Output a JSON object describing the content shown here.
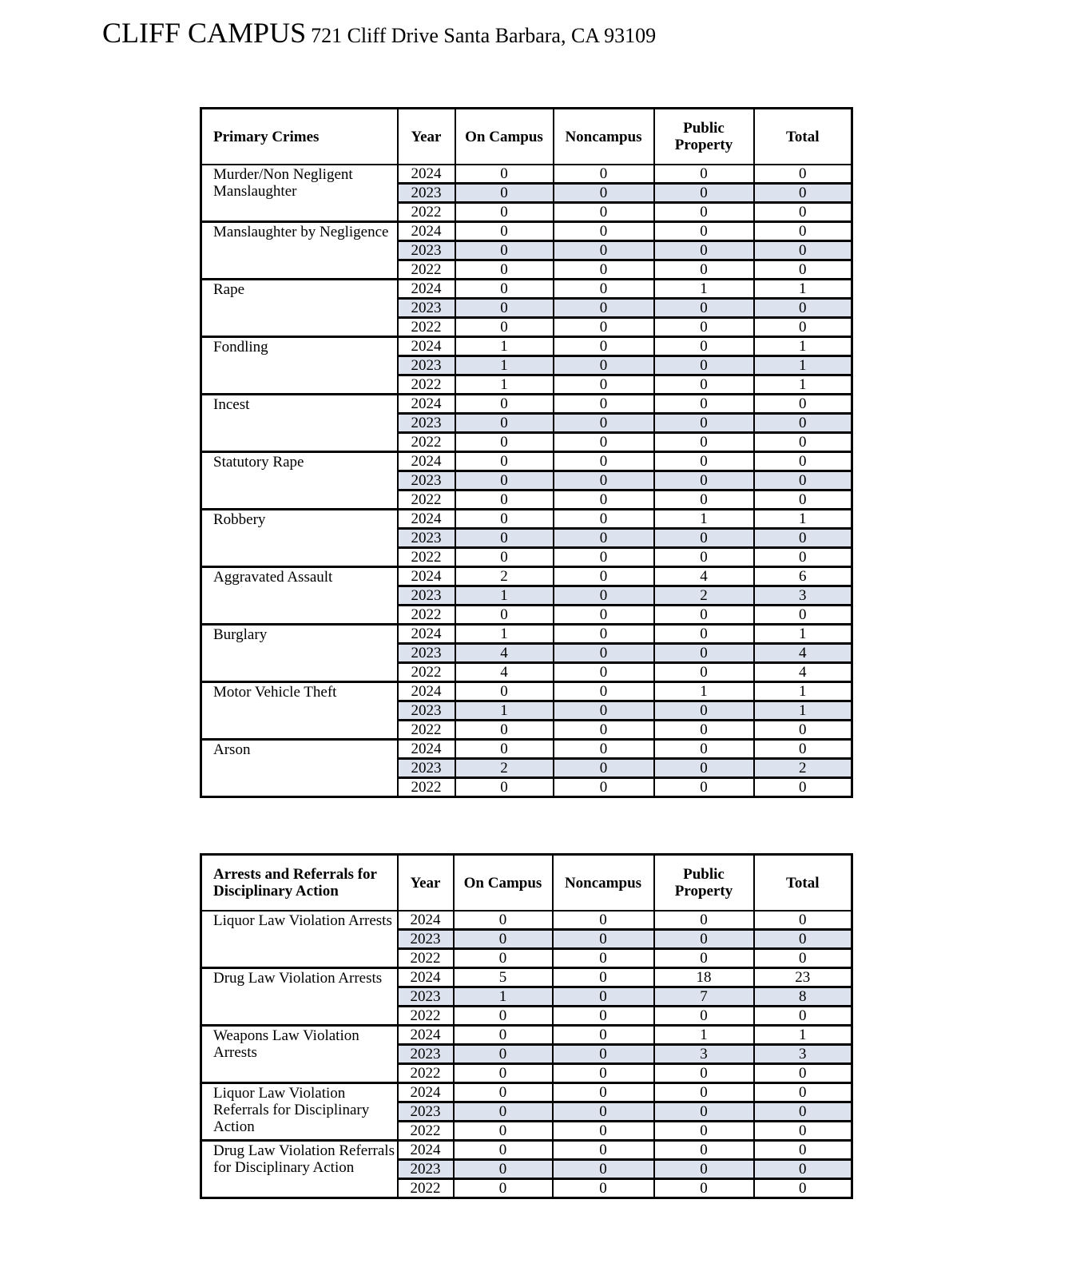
{
  "title": {
    "campus": "CLIFF CAMPUS",
    "address": "721 Cliff Drive Santa Barbara, CA 93109"
  },
  "tables": [
    {
      "headers": [
        "Primary Crimes",
        "Year",
        "On Campus",
        "Noncampus",
        "Public Property",
        "Total"
      ],
      "groups": [
        {
          "name": "Murder/Non Negligent Manslaughter",
          "rows": [
            [
              "2024",
              "0",
              "0",
              "0",
              "0"
            ],
            [
              "2023",
              "0",
              "0",
              "0",
              "0"
            ],
            [
              "2022",
              "0",
              "0",
              "0",
              "0"
            ]
          ]
        },
        {
          "name": "Manslaughter by Negligence",
          "rows": [
            [
              "2024",
              "0",
              "0",
              "0",
              "0"
            ],
            [
              "2023",
              "0",
              "0",
              "0",
              "0"
            ],
            [
              "2022",
              "0",
              "0",
              "0",
              "0"
            ]
          ]
        },
        {
          "name": "Rape",
          "rows": [
            [
              "2024",
              "0",
              "0",
              "1",
              "1"
            ],
            [
              "2023",
              "0",
              "0",
              "0",
              "0"
            ],
            [
              "2022",
              "0",
              "0",
              "0",
              "0"
            ]
          ]
        },
        {
          "name": "Fondling",
          "rows": [
            [
              "2024",
              "1",
              "0",
              "0",
              "1"
            ],
            [
              "2023",
              "1",
              "0",
              "0",
              "1"
            ],
            [
              "2022",
              "1",
              "0",
              "0",
              "1"
            ]
          ]
        },
        {
          "name": "Incest",
          "rows": [
            [
              "2024",
              "0",
              "0",
              "0",
              "0"
            ],
            [
              "2023",
              "0",
              "0",
              "0",
              "0"
            ],
            [
              "2022",
              "0",
              "0",
              "0",
              "0"
            ]
          ]
        },
        {
          "name": "Statutory Rape",
          "rows": [
            [
              "2024",
              "0",
              "0",
              "0",
              "0"
            ],
            [
              "2023",
              "0",
              "0",
              "0",
              "0"
            ],
            [
              "2022",
              "0",
              "0",
              "0",
              "0"
            ]
          ]
        },
        {
          "name": "Robbery",
          "rows": [
            [
              "2024",
              "0",
              "0",
              "1",
              "1"
            ],
            [
              "2023",
              "0",
              "0",
              "0",
              "0"
            ],
            [
              "2022",
              "0",
              "0",
              "0",
              "0"
            ]
          ]
        },
        {
          "name": "Aggravated Assault",
          "rows": [
            [
              "2024",
              "2",
              "0",
              "4",
              "6"
            ],
            [
              "2023",
              "1",
              "0",
              "2",
              "3"
            ],
            [
              "2022",
              "0",
              "0",
              "0",
              "0"
            ]
          ]
        },
        {
          "name": "Burglary",
          "rows": [
            [
              "2024",
              "1",
              "0",
              "0",
              "1"
            ],
            [
              "2023",
              "4",
              "0",
              "0",
              "4"
            ],
            [
              "2022",
              "4",
              "0",
              "0",
              "4"
            ]
          ]
        },
        {
          "name": "Motor Vehicle Theft",
          "rows": [
            [
              "2024",
              "0",
              "0",
              "1",
              "1"
            ],
            [
              "2023",
              "1",
              "0",
              "0",
              "1"
            ],
            [
              "2022",
              "0",
              "0",
              "0",
              "0"
            ]
          ]
        },
        {
          "name": "Arson",
          "rows": [
            [
              "2024",
              "0",
              "0",
              "0",
              "0"
            ],
            [
              "2023",
              "2",
              "0",
              "0",
              "2"
            ],
            [
              "2022",
              "0",
              "0",
              "0",
              "0"
            ]
          ]
        }
      ]
    },
    {
      "headers": [
        "Arrests and Referrals for Disciplinary Action",
        "Year",
        "On Campus",
        "Noncampus",
        "Public Property",
        "Total"
      ],
      "groups": [
        {
          "name": "Liquor Law Violation Arrests",
          "rows": [
            [
              "2024",
              "0",
              "0",
              "0",
              "0"
            ],
            [
              "2023",
              "0",
              "0",
              "0",
              "0"
            ],
            [
              "2022",
              "0",
              "0",
              "0",
              "0"
            ]
          ]
        },
        {
          "name": "Drug Law Violation Arrests",
          "rows": [
            [
              "2024",
              "5",
              "0",
              "18",
              "23"
            ],
            [
              "2023",
              "1",
              "0",
              "7",
              "8"
            ],
            [
              "2022",
              "0",
              "0",
              "0",
              "0"
            ]
          ]
        },
        {
          "name": "Weapons Law Violation Arrests",
          "rows": [
            [
              "2024",
              "0",
              "0",
              "1",
              "1"
            ],
            [
              "2023",
              "0",
              "0",
              "3",
              "3"
            ],
            [
              "2022",
              "0",
              "0",
              "0",
              "0"
            ]
          ]
        },
        {
          "name": "Liquor Law Violation Referrals for Disciplinary Action",
          "rows": [
            [
              "2024",
              "0",
              "0",
              "0",
              "0"
            ],
            [
              "2023",
              "0",
              "0",
              "0",
              "0"
            ],
            [
              "2022",
              "0",
              "0",
              "0",
              "0"
            ]
          ]
        },
        {
          "name": "Drug Law Violation Referrals for Disciplinary Action",
          "rows": [
            [
              "2024",
              "0",
              "0",
              "0",
              "0"
            ],
            [
              "2023",
              "0",
              "0",
              "0",
              "0"
            ],
            [
              "2022",
              "0",
              "0",
              "0",
              "0"
            ]
          ]
        }
      ]
    }
  ],
  "colors": {
    "shaded_row": "#dce3ee",
    "border": "#000000"
  }
}
